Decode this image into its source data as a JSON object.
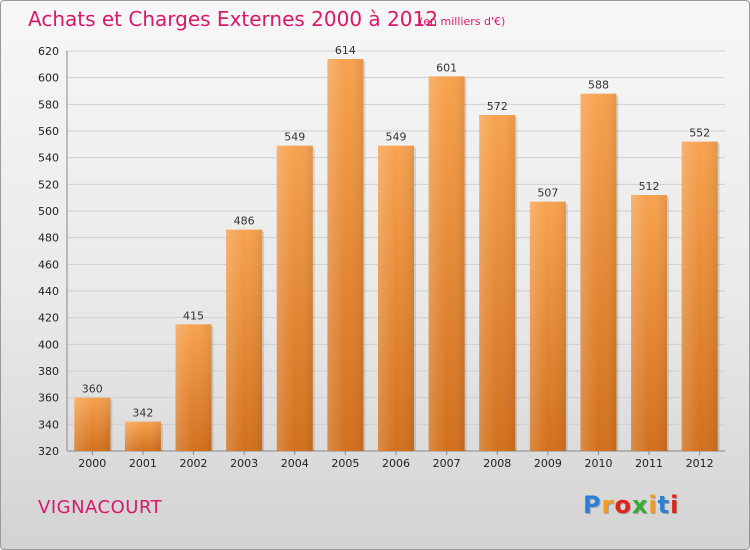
{
  "header": {
    "title": "Achats et Charges Externes 2000 à 2012",
    "subtitle": "(en milliers d'€)"
  },
  "footer": {
    "commune": "VIGNACOURT",
    "logo": {
      "letters": [
        "P",
        "r",
        "o",
        "x",
        "i",
        "t",
        "i"
      ],
      "colors": [
        "#2b7fd4",
        "#f29b1d",
        "#e2231a",
        "#3aa935",
        "#f29b1d",
        "#2b7fd4",
        "#e2231a"
      ]
    }
  },
  "colors": {
    "bar_top": "#f7a24f",
    "bar_bottom": "#d2701c",
    "accent": "#d8196b"
  },
  "chart_data": {
    "type": "bar",
    "title": "Achats et Charges Externes 2000 à 2012",
    "subtitle": "(en milliers d'€)",
    "categories": [
      "2000",
      "2001",
      "2002",
      "2003",
      "2004",
      "2005",
      "2006",
      "2007",
      "2008",
      "2009",
      "2010",
      "2011",
      "2012"
    ],
    "values": [
      360,
      342,
      415,
      486,
      549,
      614,
      549,
      601,
      572,
      507,
      588,
      512,
      552
    ],
    "xlabel": "",
    "ylabel": "",
    "ylim": [
      320,
      620
    ],
    "yticks": [
      320,
      340,
      360,
      380,
      400,
      420,
      440,
      460,
      480,
      500,
      520,
      540,
      560,
      580,
      600,
      620
    ],
    "grid": true,
    "legend": "none"
  }
}
